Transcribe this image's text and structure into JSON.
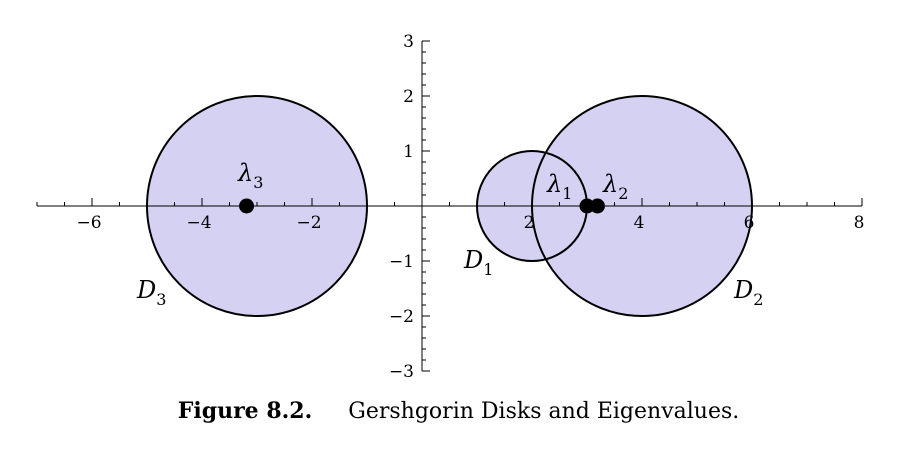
{
  "chart_data": {
    "type": "scatter",
    "title": "",
    "xlabel": "",
    "ylabel": "",
    "xlim": [
      -7,
      8
    ],
    "ylim": [
      -3,
      3
    ],
    "x_ticks": [
      -6,
      -4,
      -2,
      2,
      4,
      6,
      8
    ],
    "y_ticks": [
      -3,
      -2,
      -1,
      1,
      2,
      3
    ],
    "x_tick_labels": [
      "−6",
      "−4",
      "−2",
      "2",
      "4",
      "6",
      "8"
    ],
    "y_tick_labels": [
      "−3",
      "−2",
      "−1",
      "1",
      "2",
      "3"
    ],
    "grid": false,
    "fill_color": "#d4d1f3",
    "edge_color": "#000000",
    "disks": [
      {
        "name": "D",
        "subscript": "1",
        "center": 2,
        "radius": 1
      },
      {
        "name": "D",
        "subscript": "2",
        "center": 4,
        "radius": 2
      },
      {
        "name": "D",
        "subscript": "3",
        "center": -3,
        "radius": 2
      }
    ],
    "eigenvalues": [
      {
        "name": "λ",
        "subscript": "1",
        "x": 3.0,
        "y": 0
      },
      {
        "name": "λ",
        "subscript": "2",
        "x": 3.19,
        "y": 0
      },
      {
        "name": "λ",
        "subscript": "3",
        "x": -3.19,
        "y": 0
      }
    ]
  },
  "caption": {
    "number": "Figure 8.2.",
    "text": "Gershgorin Disks and Eigenvalues."
  }
}
